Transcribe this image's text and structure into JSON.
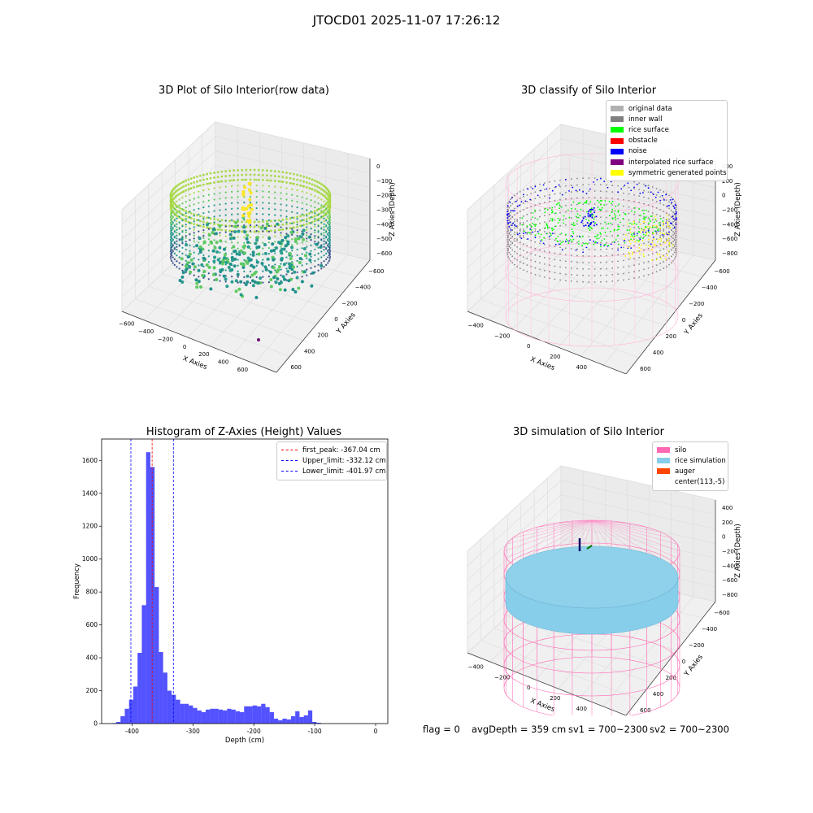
{
  "suptitle": "JTOCD01 2025-11-07 17:26:12",
  "chart_data": [
    {
      "type": "scatter",
      "title": "3D Plot of Silo Interior(row data)",
      "xlabel": "X Axies",
      "ylabel": "Y Axies",
      "zlabel": "Z Axies (Depth)",
      "x_ticks": [
        "−600",
        "−400",
        "−200",
        "0",
        "200",
        "400",
        "600",
        "800"
      ],
      "y_ticks": [
        "−600",
        "−400",
        "−200",
        "0",
        "200",
        "400",
        "600"
      ],
      "z_ticks": [
        "0",
        "−100",
        "−200",
        "−300",
        "−400",
        "−500",
        "−600"
      ],
      "colormap": "viridis",
      "grid": true
    },
    {
      "type": "scatter",
      "title": "3D classify of Silo Interior",
      "xlabel": "X Axies",
      "ylabel": "Y Axies",
      "zlabel": "Z Axies (Depth)",
      "x_ticks": [
        "−400",
        "−200",
        "0",
        "200",
        "400",
        "600"
      ],
      "y_ticks": [
        "−600",
        "−400",
        "−200",
        "0",
        "200",
        "400",
        "600"
      ],
      "z_ticks": [
        "400",
        "200",
        "0",
        "−200",
        "−400",
        "−600",
        "−800"
      ],
      "legend_position": "top-right",
      "series": [
        {
          "name": "original data",
          "color": "#b0b0b0"
        },
        {
          "name": "inner wall",
          "color": "#808080"
        },
        {
          "name": "rice surface",
          "color": "#00ff00"
        },
        {
          "name": "obstacle",
          "color": "#ff0000"
        },
        {
          "name": "noise",
          "color": "#0000ff"
        },
        {
          "name": "interpolated rice surface",
          "color": "#800080"
        },
        {
          "name": "symmetric generated points",
          "color": "#ffff00"
        }
      ],
      "grid": true
    },
    {
      "type": "bar",
      "title": "Histogram of Z-Axies (Height) Values",
      "xlabel": "Depth (cm)",
      "ylabel": "Frequency",
      "xlim": [
        -450,
        20
      ],
      "ylim": [
        0,
        1730
      ],
      "x_ticks": [
        -400,
        -300,
        -200,
        -100,
        0
      ],
      "y_ticks": [
        0,
        200,
        400,
        600,
        800,
        1000,
        1200,
        1400,
        1600
      ],
      "bin_start": -433,
      "bin_width": 7.0,
      "values": [
        3,
        10,
        45,
        90,
        145,
        225,
        430,
        720,
        1650,
        1560,
        830,
        435,
        310,
        200,
        175,
        145,
        120,
        120,
        110,
        95,
        80,
        70,
        85,
        90,
        90,
        85,
        80,
        90,
        85,
        75,
        70,
        105,
        105,
        110,
        105,
        120,
        100,
        70,
        30,
        20,
        30,
        25,
        45,
        75,
        40,
        50,
        80,
        10,
        5
      ],
      "bar_color": "#0000ff",
      "vlines": [
        {
          "label": "first_peak: -367.04 cm",
          "x": -367.04,
          "color": "#ff0000"
        },
        {
          "label": "Upper_limit: -332.12 cm",
          "x": -332.12,
          "color": "#0000ff"
        },
        {
          "label": "Lower_limit: -401.97 cm",
          "x": -401.97,
          "color": "#0000ff"
        }
      ],
      "legend_position": "top-right",
      "grid": false
    },
    {
      "type": "scatter",
      "title": "3D simulation of Silo Interior",
      "xlabel": "X Axies",
      "ylabel": "Y Axies",
      "zlabel": "Z Axies (Depth)",
      "x_ticks": [
        "−400",
        "−200",
        "0",
        "200",
        "400",
        "600"
      ],
      "y_ticks": [
        "−600",
        "−400",
        "−200",
        "0",
        "200",
        "400",
        "600"
      ],
      "z_ticks": [
        "400",
        "200",
        "0",
        "−200",
        "−400",
        "−600",
        "−800"
      ],
      "legend_position": "top-right",
      "series": [
        {
          "name": "silo",
          "color": "#ff69b4"
        },
        {
          "name": "rice simulation",
          "color": "#87ceeb"
        },
        {
          "name": "auger",
          "color": "#ff4500"
        },
        {
          "name": "center(113,-5)",
          "color": ""
        }
      ],
      "grid": true
    }
  ],
  "footer": {
    "flag": "flag = 0",
    "avg": "avgDepth = 359 cm",
    "sv1": "sv1 = 700~2300",
    "sv2": "sv2 = 700~2300"
  }
}
